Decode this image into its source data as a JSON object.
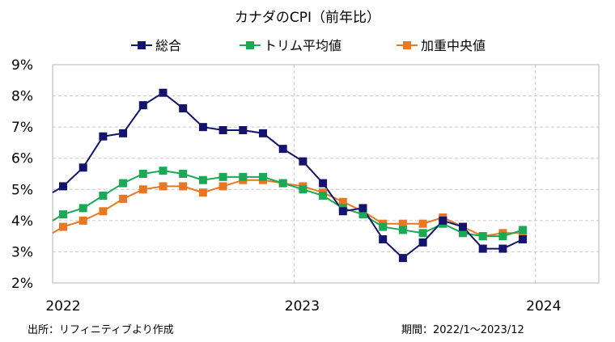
{
  "chart_data": {
    "type": "line",
    "title": "カナダのCPI（前年比）",
    "xlabel": "",
    "ylabel": "",
    "ylim": [
      2,
      9
    ],
    "y_tick_labels": [
      "2%",
      "3%",
      "4%",
      "5%",
      "6%",
      "7%",
      "8%",
      "9%"
    ],
    "x_tick_labels": [
      "2022",
      "2023",
      "2024"
    ],
    "x": [
      "2022/1",
      "2022/2",
      "2022/3",
      "2022/4",
      "2022/5",
      "2022/6",
      "2022/7",
      "2022/8",
      "2022/9",
      "2022/10",
      "2022/11",
      "2022/12",
      "2023/1",
      "2023/2",
      "2023/3",
      "2023/4",
      "2023/5",
      "2023/6",
      "2023/7",
      "2023/8",
      "2023/9",
      "2023/10",
      "2023/11",
      "2023/12"
    ],
    "grid": true,
    "legend_position": "top",
    "series": [
      {
        "name": "総合",
        "color": "#14146e",
        "lead_in": 4.9,
        "values": [
          5.1,
          5.7,
          6.7,
          6.8,
          7.7,
          8.1,
          7.6,
          7.0,
          6.9,
          6.9,
          6.8,
          6.3,
          5.9,
          5.2,
          4.3,
          4.4,
          3.4,
          2.8,
          3.3,
          4.0,
          3.8,
          3.1,
          3.1,
          3.4
        ]
      },
      {
        "name": "トリム平均値",
        "color": "#1aaa55",
        "lead_in": 4.0,
        "values": [
          4.2,
          4.4,
          4.8,
          5.2,
          5.5,
          5.6,
          5.5,
          5.3,
          5.4,
          5.4,
          5.4,
          5.2,
          5.0,
          4.8,
          4.4,
          4.2,
          3.8,
          3.7,
          3.6,
          3.9,
          3.6,
          3.5,
          3.5,
          3.7
        ]
      },
      {
        "name": "加重中央値",
        "color": "#e87722",
        "lead_in": 3.6,
        "values": [
          3.8,
          4.0,
          4.3,
          4.7,
          5.0,
          5.1,
          5.1,
          4.9,
          5.1,
          5.3,
          5.3,
          5.2,
          5.1,
          4.9,
          4.6,
          4.3,
          3.9,
          3.9,
          3.9,
          4.1,
          3.8,
          3.5,
          3.6,
          3.6
        ]
      }
    ],
    "source_note": "出所：リフィニティブより作成",
    "period_note": "期間：2022/1～2023/12"
  }
}
